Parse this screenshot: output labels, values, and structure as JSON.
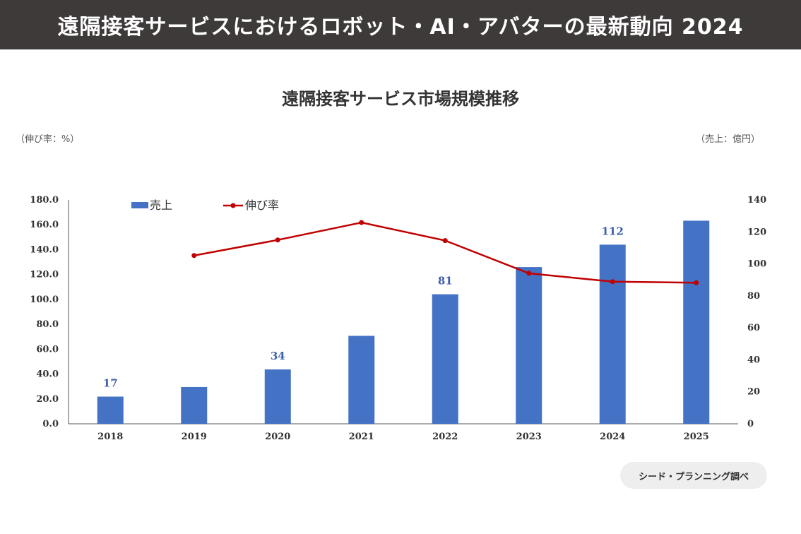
{
  "header": {
    "title": "遠隔接客サービスにおけるロボット・AI・アバターの最新動向 2024"
  },
  "colors": {
    "header_bg": "#3e3a39",
    "bar": "#4472c4",
    "line": "#c00000",
    "label": "#3e5fa8"
  },
  "chart_data": {
    "type": "bar+line",
    "title": "遠隔接客サービス市場規模推移",
    "left_axis_label": "（伸び率：%）",
    "right_axis_label": "（売上：億円）",
    "categories": [
      "2018",
      "2019",
      "2020",
      "2021",
      "2022",
      "2023",
      "2024",
      "2025"
    ],
    "series": [
      {
        "name": "売上",
        "type": "bar",
        "axis": "right",
        "values": [
          17,
          23,
          34,
          55,
          81,
          98,
          112,
          127
        ]
      },
      {
        "name": "伸び率",
        "type": "line",
        "axis": "left",
        "values": [
          null,
          135.3,
          147.8,
          161.8,
          147.3,
          121.0,
          114.3,
          113.4
        ]
      }
    ],
    "data_labels": [
      {
        "index": 0,
        "text": "17"
      },
      {
        "index": 2,
        "text": "34"
      },
      {
        "index": 4,
        "text": "81"
      },
      {
        "index": 6,
        "text": "112"
      }
    ],
    "left_ticks": [
      "0.0",
      "20.0",
      "40.0",
      "60.0",
      "80.0",
      "100.0",
      "120.0",
      "140.0",
      "160.0",
      "180.0"
    ],
    "right_ticks": [
      "0",
      "20",
      "40",
      "60",
      "80",
      "100",
      "120",
      "140"
    ],
    "left_ylim": [
      0,
      180
    ],
    "right_ylim": [
      0,
      140
    ],
    "legend_position": "top-left"
  },
  "source": {
    "text": "シード・プランニング調べ"
  }
}
